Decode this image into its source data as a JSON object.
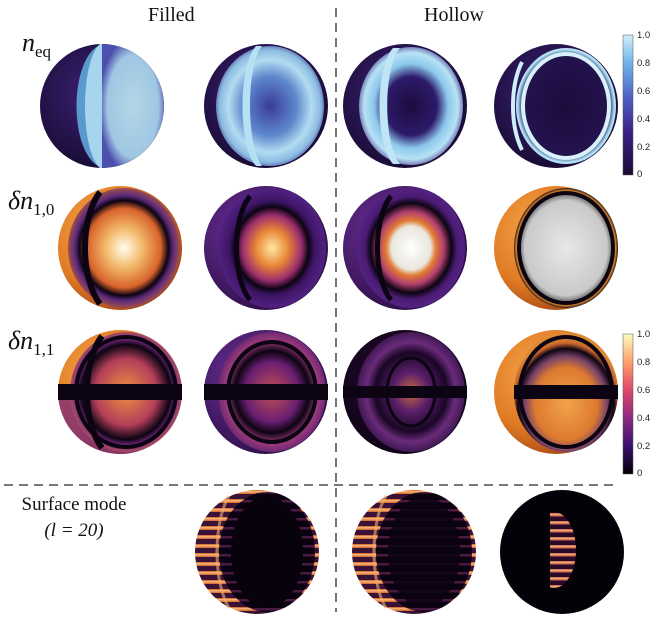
{
  "columns": {
    "filled": "Filled",
    "hollow": "Hollow"
  },
  "rows": {
    "neq": {
      "symbol": "n",
      "sub": "eq"
    },
    "dn10": {
      "symbol": "δn",
      "sub": "1,0"
    },
    "dn11": {
      "symbol": "δn",
      "sub": "1,1"
    },
    "surface": {
      "line1": "Surface mode",
      "line2": "(l = 20)"
    }
  },
  "colorbar_top": {
    "ticks": [
      "1.0",
      "0.8",
      "0.6",
      "0.4",
      "0.2",
      "0"
    ],
    "range": [
      0,
      1
    ],
    "colormap": "blue-purple"
  },
  "colorbar_bottom": {
    "ticks": [
      "1.0",
      "0.8",
      "0.6",
      "0.4",
      "0.2",
      "0"
    ],
    "range": [
      0,
      1
    ],
    "colormap": "inferno"
  },
  "colors": {
    "dark_purple": "#24124d",
    "light_blue": "#a9d6ee",
    "orange": "#e5832d",
    "near_black": "#0b0410",
    "divider": "#777777"
  }
}
